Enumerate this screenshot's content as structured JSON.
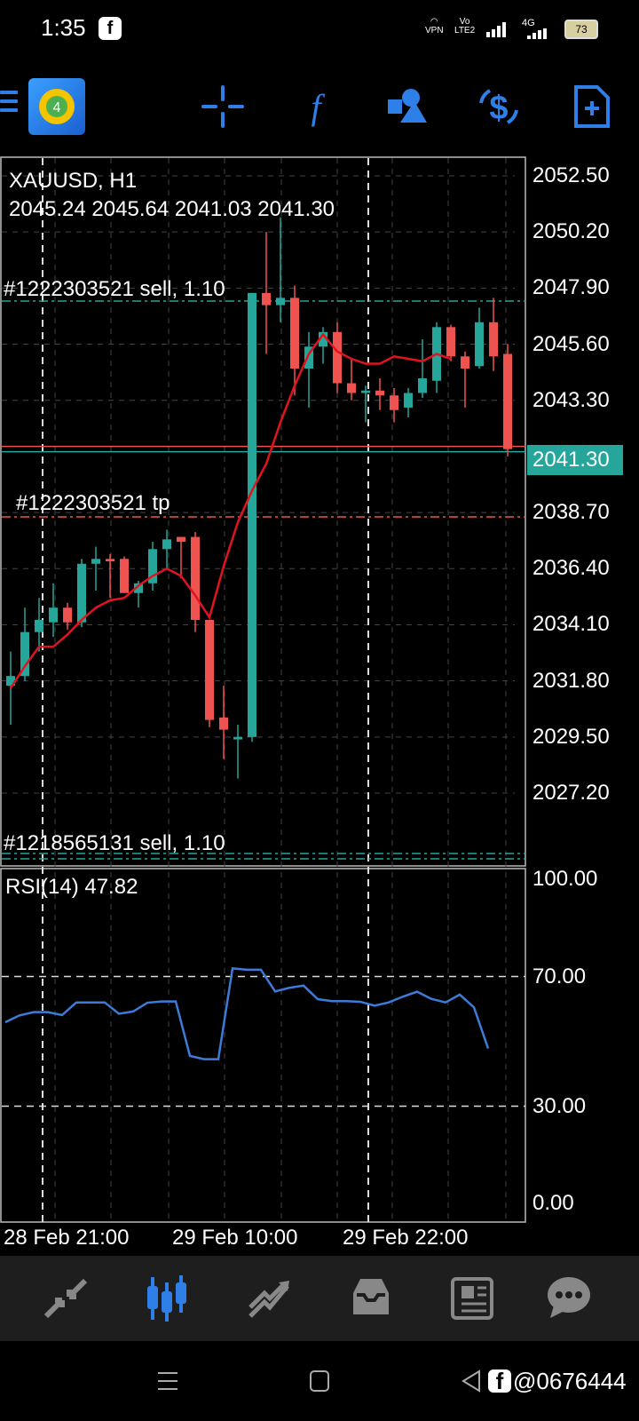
{
  "status_bar": {
    "time": "1:35",
    "vpn": "VPN",
    "volte_top": "Vo",
    "volte_bottom": "LTE2",
    "network": "4G",
    "battery": "73"
  },
  "toolbar": {
    "icons": [
      "menu-icon",
      "app-logo",
      "crosshair-icon",
      "function-icon",
      "objects-icon",
      "currency-icon",
      "new-order-icon"
    ]
  },
  "chart": {
    "symbol": "XAUUSD, H1",
    "ohlc": "2045.24 2045.64 2041.03 2041.30",
    "current_price": "2041.30",
    "price_labels": [
      "2052.50",
      "2050.20",
      "2047.90",
      "2045.60",
      "2043.30",
      "2038.70",
      "2036.40",
      "2034.10",
      "2031.80",
      "2029.50",
      "2027.20"
    ],
    "orders": {
      "sell1": "#1222303521 sell, 1.10",
      "tp1": "#1222303521 tp",
      "sell2": "#1218565131 sell, 1.10"
    },
    "rsi_title": "RSI(14) 47.82",
    "rsi_labels": [
      "100.00",
      "70.00",
      "30.00",
      "0.00"
    ],
    "time_labels": [
      "28 Feb 21:00",
      "29 Feb 10:00",
      "29 Feb 22:00"
    ],
    "colors": {
      "bull": "#26a69a",
      "bear": "#ef5350",
      "ma": "#e0141e",
      "rsi": "#3d7bd9"
    }
  },
  "chart_data": {
    "type": "candlestick",
    "title": "XAUUSD, H1",
    "ylim": [
      2025.4,
      2053.0
    ],
    "candles": [
      {
        "o": 2031.6,
        "h": 2033.0,
        "l": 2030.0,
        "c": 2032.0
      },
      {
        "o": 2032.0,
        "h": 2034.8,
        "l": 2031.8,
        "c": 2033.8
      },
      {
        "o": 2033.8,
        "h": 2035.2,
        "l": 2033.0,
        "c": 2034.3
      },
      {
        "o": 2034.2,
        "h": 2035.8,
        "l": 2033.6,
        "c": 2034.8
      },
      {
        "o": 2034.8,
        "h": 2035.0,
        "l": 2033.9,
        "c": 2034.2
      },
      {
        "o": 2034.2,
        "h": 2036.8,
        "l": 2034.0,
        "c": 2036.6
      },
      {
        "o": 2036.6,
        "h": 2037.3,
        "l": 2035.5,
        "c": 2036.8
      },
      {
        "o": 2036.8,
        "h": 2037.0,
        "l": 2035.2,
        "c": 2036.7
      },
      {
        "o": 2036.8,
        "h": 2036.9,
        "l": 2035.6,
        "c": 2035.4
      },
      {
        "o": 2035.4,
        "h": 2035.9,
        "l": 2034.8,
        "c": 2035.8
      },
      {
        "o": 2035.8,
        "h": 2037.5,
        "l": 2035.5,
        "c": 2037.2
      },
      {
        "o": 2037.2,
        "h": 2038.0,
        "l": 2036.4,
        "c": 2037.6
      },
      {
        "o": 2037.7,
        "h": 2037.7,
        "l": 2036.0,
        "c": 2037.5
      },
      {
        "o": 2037.7,
        "h": 2037.9,
        "l": 2033.8,
        "c": 2034.3
      },
      {
        "o": 2034.3,
        "h": 2034.3,
        "l": 2029.9,
        "c": 2030.2
      },
      {
        "o": 2030.3,
        "h": 2031.6,
        "l": 2028.6,
        "c": 2029.8
      },
      {
        "o": 2029.4,
        "h": 2030.0,
        "l": 2027.8,
        "c": 2029.5
      },
      {
        "o": 2029.5,
        "h": 2047.7,
        "l": 2029.3,
        "c": 2047.7
      },
      {
        "o": 2047.7,
        "h": 2050.2,
        "l": 2045.2,
        "c": 2047.2
      },
      {
        "o": 2047.2,
        "h": 2050.8,
        "l": 2046.5,
        "c": 2047.5
      },
      {
        "o": 2047.5,
        "h": 2048.0,
        "l": 2043.5,
        "c": 2044.6
      },
      {
        "o": 2044.6,
        "h": 2046.1,
        "l": 2043.0,
        "c": 2045.5
      },
      {
        "o": 2045.5,
        "h": 2046.3,
        "l": 2044.8,
        "c": 2046.1
      },
      {
        "o": 2046.1,
        "h": 2046.5,
        "l": 2043.6,
        "c": 2044.0
      },
      {
        "o": 2044.0,
        "h": 2045.0,
        "l": 2043.3,
        "c": 2043.6
      },
      {
        "o": 2043.6,
        "h": 2043.9,
        "l": 2042.4,
        "c": 2043.7
      },
      {
        "o": 2043.7,
        "h": 2044.2,
        "l": 2042.9,
        "c": 2043.5
      },
      {
        "o": 2043.5,
        "h": 2043.8,
        "l": 2042.4,
        "c": 2042.9
      },
      {
        "o": 2043.0,
        "h": 2043.8,
        "l": 2042.6,
        "c": 2043.6
      },
      {
        "o": 2043.6,
        "h": 2045.8,
        "l": 2043.4,
        "c": 2044.2
      },
      {
        "o": 2044.1,
        "h": 2046.5,
        "l": 2043.6,
        "c": 2046.3
      },
      {
        "o": 2046.3,
        "h": 2046.4,
        "l": 2044.9,
        "c": 2045.1
      },
      {
        "o": 2045.1,
        "h": 2045.3,
        "l": 2043.0,
        "c": 2044.6
      },
      {
        "o": 2044.7,
        "h": 2047.1,
        "l": 2044.6,
        "c": 2046.5
      },
      {
        "o": 2046.5,
        "h": 2047.5,
        "l": 2044.5,
        "c": 2045.1
      },
      {
        "o": 2045.2,
        "h": 2045.6,
        "l": 2041.0,
        "c": 2041.3
      }
    ],
    "ma": [
      2031.5,
      2032.4,
      2033.2,
      2033.2,
      2033.7,
      2034.3,
      2034.8,
      2035.1,
      2035.2,
      2035.7,
      2036.1,
      2036.4,
      2036.1,
      2035.3,
      2034.4,
      2036.5,
      2038.3,
      2039.6,
      2040.7,
      2042.4,
      2043.9,
      2045.2,
      2046.0,
      2045.3,
      2045.0,
      2044.8,
      2044.8,
      2045.1,
      2045.0,
      2044.9,
      2045.2,
      2045.0
    ],
    "rsi": [
      55.9,
      58.0,
      59.0,
      59.0,
      58.1,
      62.0,
      62.0,
      62.0,
      58.5,
      59.2,
      61.9,
      62.3,
      62.3,
      45.5,
      44.5,
      44.5,
      72.5,
      72.1,
      72.1,
      65.4,
      66.5,
      67.2,
      63.0,
      62.4,
      62.4,
      62.2,
      61.0,
      62.0,
      63.8,
      65.3,
      63.1,
      62.0,
      64.4,
      60.5,
      47.8
    ],
    "rsi_ylim": [
      0,
      100
    ],
    "rsi_levels": [
      30,
      70
    ]
  },
  "bottom_nav": {
    "items": [
      "quotes-icon",
      "chart-icon",
      "trade-icon",
      "history-icon",
      "news-icon",
      "chat-icon"
    ]
  },
  "system_nav": {
    "watermark": "@0676444"
  }
}
